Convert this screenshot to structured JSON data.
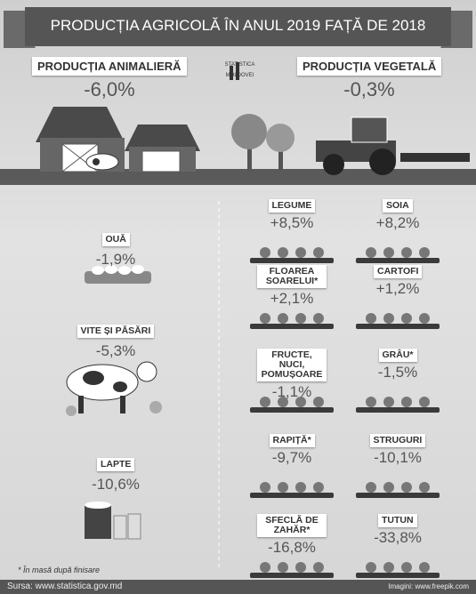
{
  "header": {
    "title": "PRODUCȚIA AGRICOLĂ ÎN ANUL 2019 FAȚĂ DE 2018"
  },
  "logo": {
    "line1": "STATISTICA",
    "line2": "MOLDOVEI"
  },
  "summary": [
    {
      "label": "PRODUCȚIA ANIMALIERĂ",
      "change": "-6,0%"
    },
    {
      "label": "PRODUCȚIA VEGETALĂ",
      "change": "-0,3%"
    }
  ],
  "animal": [
    {
      "label": "OUĂ",
      "change": "-1,9%"
    },
    {
      "label": "VITE ȘI PĂSĂRI",
      "change": "-5,3%"
    },
    {
      "label": "LAPTE",
      "change": "-10,6%"
    }
  ],
  "crops": [
    {
      "label": "LEGUME",
      "change": "+8,5%"
    },
    {
      "label": "SOIA",
      "change": "+8,2%"
    },
    {
      "label": "FLOAREA SOARELUI*",
      "change": "+2,1%"
    },
    {
      "label": "CARTOFI",
      "change": "+1,2%"
    },
    {
      "label": "FRUCTE, NUCI, POMUȘOARE",
      "change": "-1,1%"
    },
    {
      "label": "GRÂU*",
      "change": "-1,5%"
    },
    {
      "label": "RAPIȚĂ*",
      "change": "-9,7%"
    },
    {
      "label": "STRUGURI",
      "change": "-10,1%"
    },
    {
      "label": "SFECLĂ DE ZAHĂR*",
      "change": "-16,8%"
    },
    {
      "label": "TUTUN",
      "change": "-33,8%"
    }
  ],
  "footnote": "* În masă după finisare",
  "footer": {
    "source": "Sursa: www.statistica.gov.md",
    "images": "Imagini: www.freepik.com"
  }
}
